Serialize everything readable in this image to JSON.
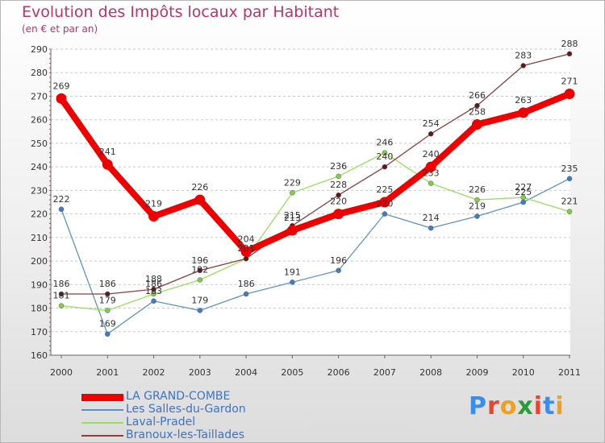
{
  "header": {
    "title": "Evolution des Impôts locaux par Habitant",
    "subtitle": "(en € et par an)"
  },
  "brand": {
    "text": "Proxiti",
    "letter_colors": [
      "#3a8ee6",
      "#e8442e",
      "#f0a020",
      "#2e9a3a",
      "#e8442e",
      "#3a8ee6",
      "#f0a020"
    ]
  },
  "chart_data": {
    "type": "line",
    "x": [
      "2000",
      "2001",
      "2002",
      "2003",
      "2004",
      "2005",
      "2006",
      "2007",
      "2008",
      "2009",
      "2010",
      "2011"
    ],
    "ylim": [
      160,
      290
    ],
    "yticks": [
      "160",
      "170",
      "180",
      "190",
      "200",
      "210",
      "220",
      "230",
      "240",
      "250",
      "260",
      "270",
      "280",
      "290"
    ],
    "grid": "horizontal-dashed",
    "legend_position": "bottom-left",
    "series": [
      {
        "name": "LA GRAND-COMBE",
        "color": "#ee0000",
        "emphasis": true,
        "values": [
          269,
          241,
          219,
          226,
          204,
          213,
          220,
          225,
          240,
          258,
          263,
          271
        ],
        "labels": [
          "269",
          "241",
          "219",
          "226",
          "204",
          "213",
          "220",
          "225",
          "240",
          "258",
          "263",
          "271"
        ]
      },
      {
        "name": "Les Salles-du-Gardon",
        "color": "#5f92c4",
        "marker_color": "#3d7dc8",
        "values": [
          222,
          169,
          183,
          179,
          186,
          191,
          196,
          220,
          214,
          219,
          225,
          235
        ],
        "labels": [
          "222",
          "169",
          "183",
          "179",
          "186",
          "191",
          "196",
          "220",
          "214",
          "219",
          "225",
          "235"
        ]
      },
      {
        "name": "Laval-Pradel",
        "color": "#96e05a",
        "marker_color": "#7ed04a",
        "values": [
          181,
          179,
          186,
          192,
          201,
          229,
          236,
          246,
          233,
          226,
          227,
          221
        ],
        "labels": [
          "181",
          "179",
          "186",
          "192",
          "201",
          "229",
          "236",
          "246",
          "233",
          "226",
          "227",
          "221"
        ]
      },
      {
        "name": "Branoux-les-Taillades",
        "color": "#8a3f3f",
        "marker_color": "#5e1a1a",
        "values": [
          186,
          186,
          188,
          196,
          201,
          215,
          228,
          240,
          254,
          266,
          283,
          288
        ],
        "labels": [
          "186",
          "186",
          "188",
          "196",
          "201",
          "215",
          "228",
          "240",
          "254",
          "266",
          "283",
          "288"
        ]
      }
    ]
  }
}
